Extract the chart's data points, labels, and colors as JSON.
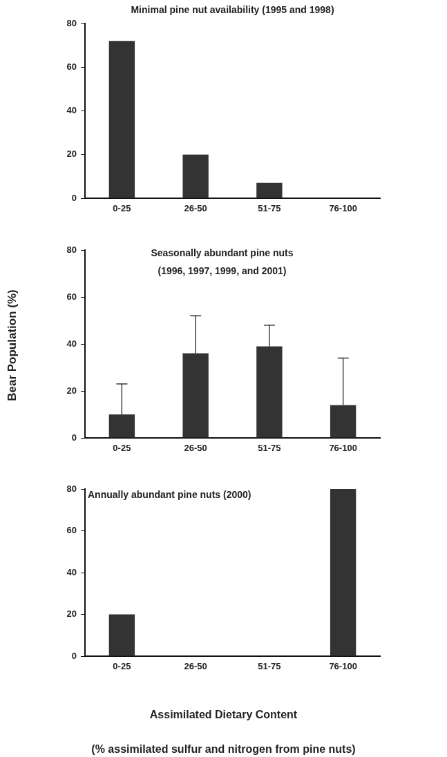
{
  "chart_data": [
    {
      "type": "bar",
      "title": "Minimal pine nut availability (1995 and 1998)",
      "categories": [
        "0-25",
        "26-50",
        "51-75",
        "76-100"
      ],
      "values": [
        72,
        20,
        7,
        0
      ],
      "color": "#333333",
      "ylim": [
        0,
        80
      ],
      "yticks": [
        0,
        20,
        40,
        60,
        80
      ],
      "grid": false,
      "legend": false
    },
    {
      "type": "bar",
      "title": "Seasonally abundant pine nuts\n(1996, 1997, 1999, and 2001)",
      "ylabel": "Bear Population (%)",
      "categories": [
        "0-25",
        "26-50",
        "51-75",
        "76-100"
      ],
      "values": [
        10,
        36,
        39,
        14
      ],
      "errors": [
        [
          10,
          23
        ],
        [
          36,
          52
        ],
        [
          39,
          48
        ],
        [
          14,
          34
        ]
      ],
      "color": "#333333",
      "ylim": [
        0,
        80
      ],
      "yticks": [
        0,
        20,
        40,
        60,
        80
      ],
      "grid": false,
      "legend": false
    },
    {
      "type": "bar",
      "title": "Annually abundant pine nuts (2000)",
      "xlabel": "Assimilated Dietary Content\n(% assimilated sulfur and nitrogen from pine nuts)",
      "categories": [
        "0-25",
        "26-50",
        "51-75",
        "76-100"
      ],
      "values": [
        20,
        0,
        0,
        80
      ],
      "color": "#333333",
      "ylim": [
        0,
        80
      ],
      "yticks": [
        0,
        20,
        40,
        60,
        80
      ],
      "grid": false,
      "legend": false
    }
  ]
}
